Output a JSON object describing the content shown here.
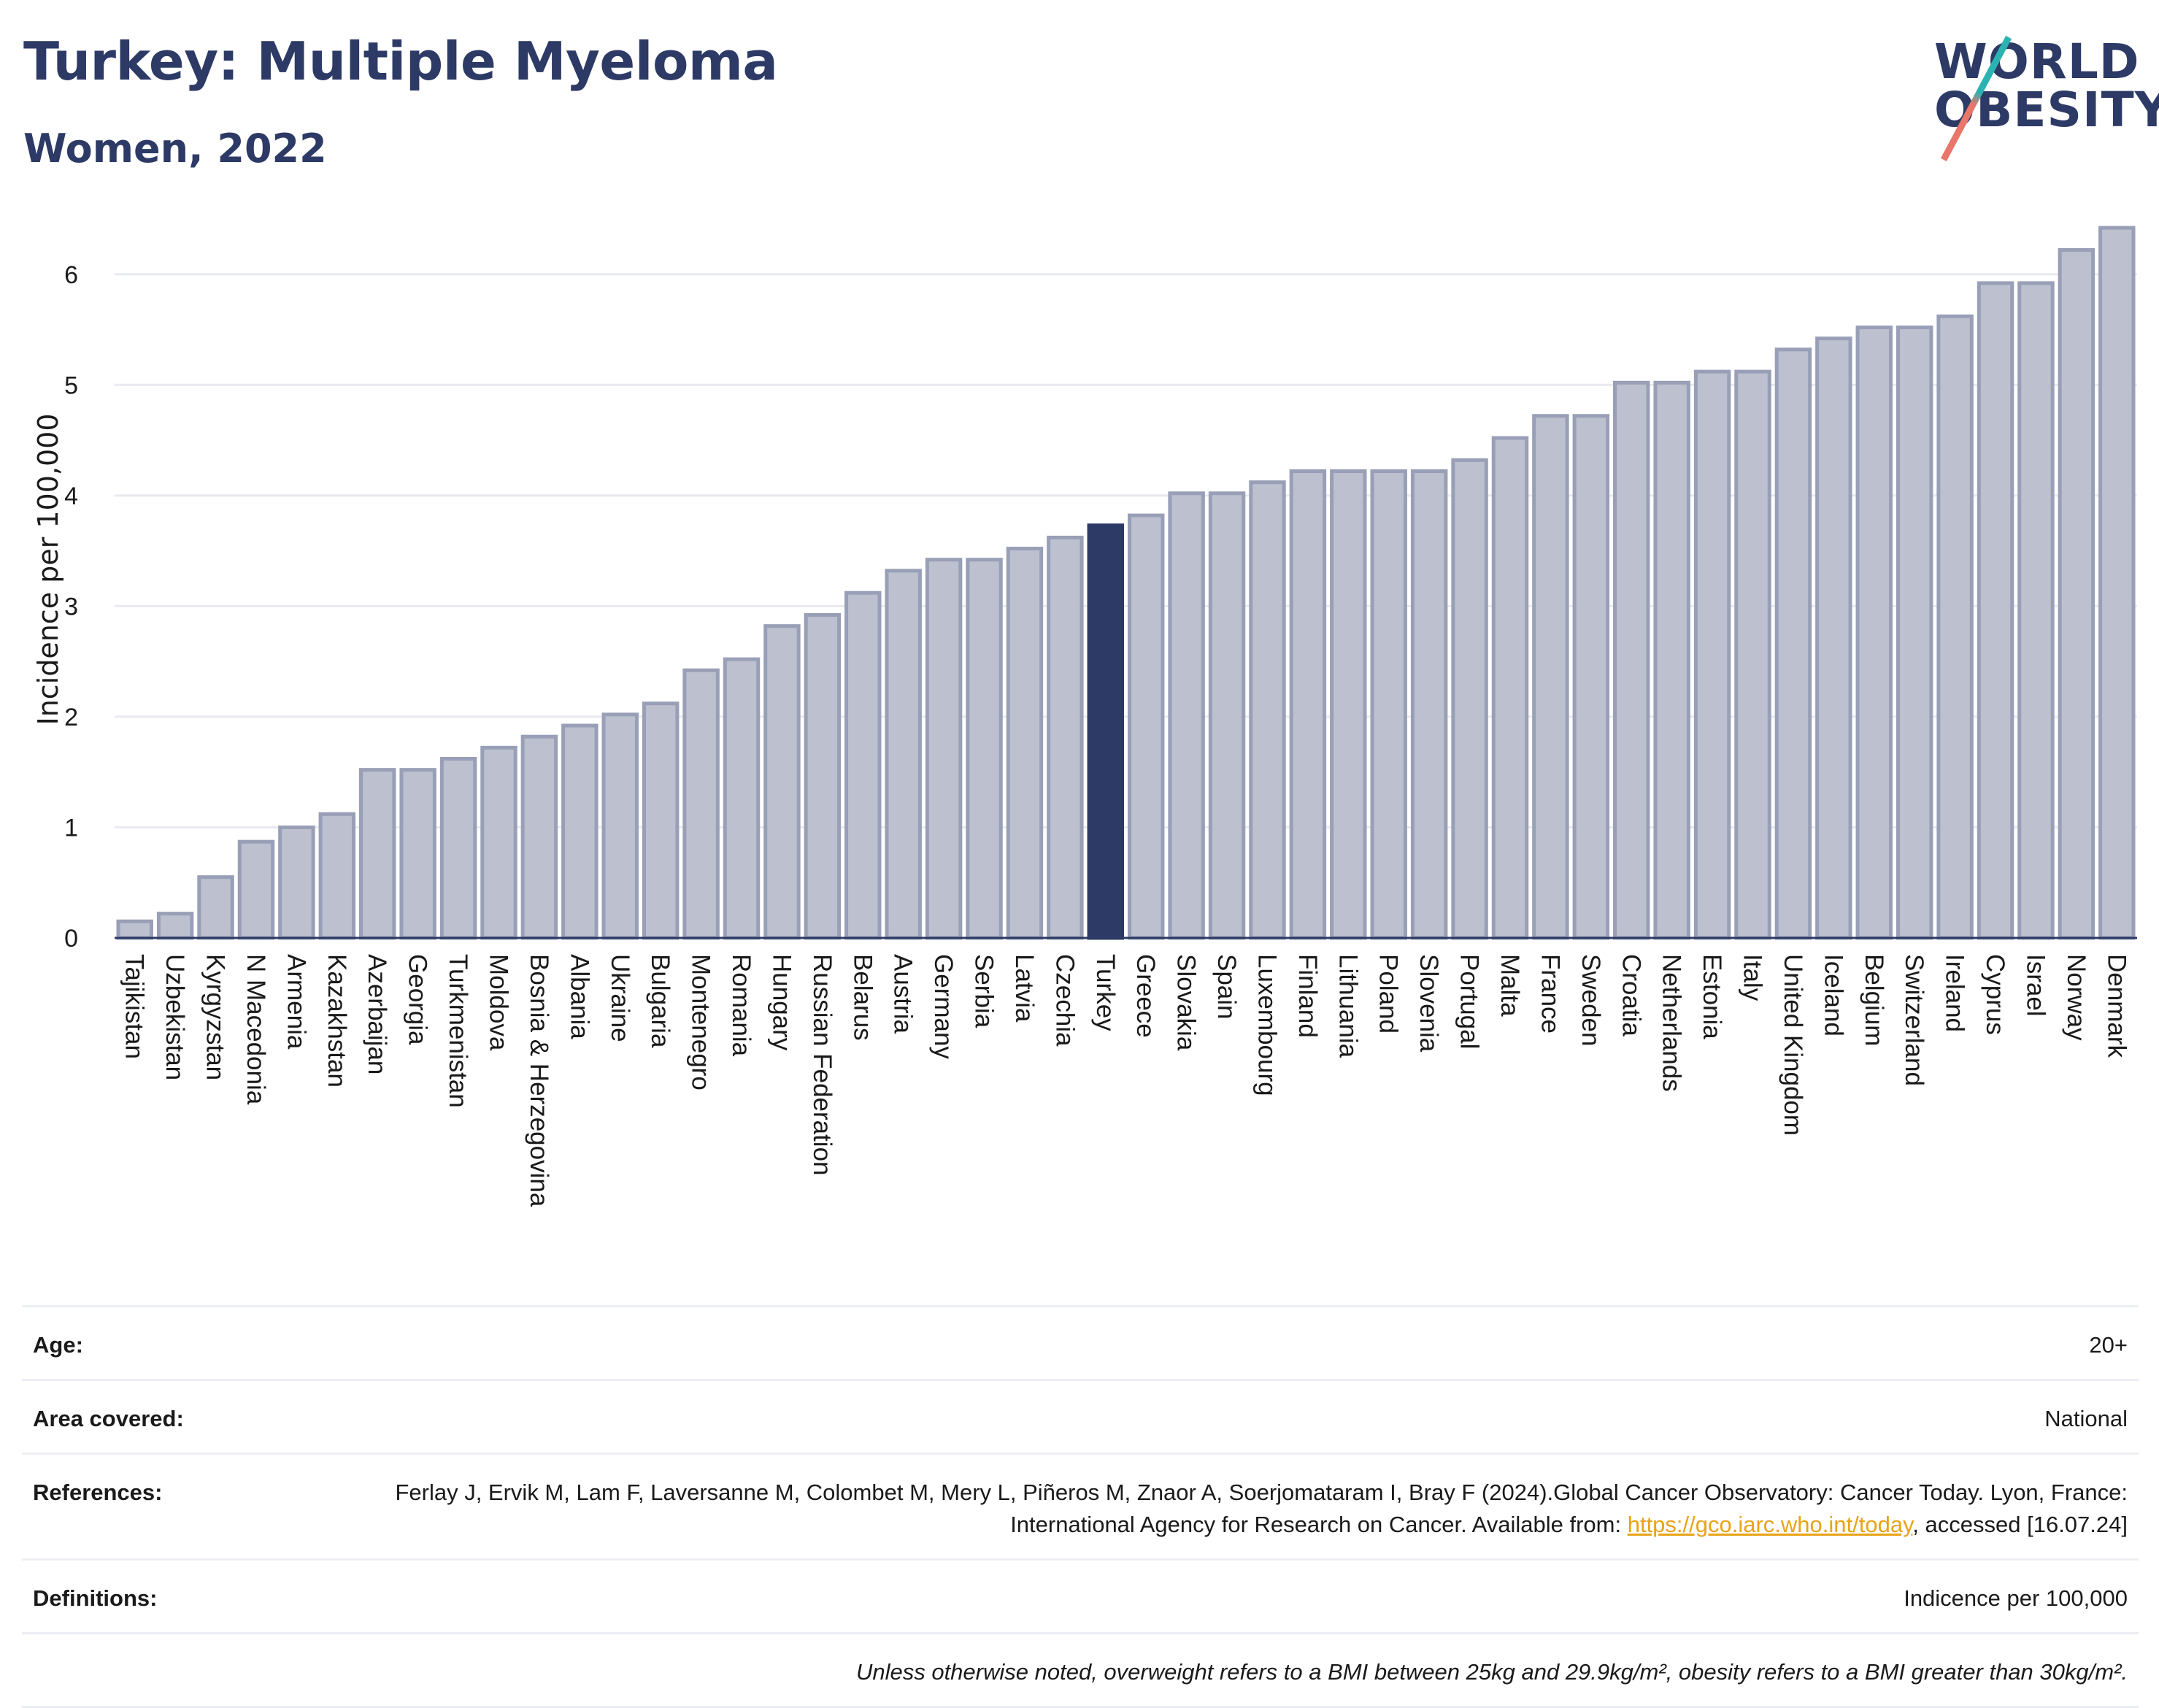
{
  "header": {
    "title": "Turkey: Multiple Myeloma",
    "subtitle": "Women, 2022",
    "logo_line1": "WORLD",
    "logo_line2": "OBESITY"
  },
  "colors": {
    "title": "#2d3a66",
    "highlight_bar": "#2d3a66",
    "other_bar_fill": "#bcc0cf",
    "other_bar_stroke": "#989fb6",
    "link": "#e8a317",
    "logo_teal": "#2bb3b1",
    "logo_coral": "#e8766a"
  },
  "chart_data": {
    "type": "bar",
    "ylabel": "Incidence per 100,000",
    "ylim": [
      0,
      6.5
    ],
    "yticks": [
      0,
      1,
      2,
      3,
      4,
      5,
      6
    ],
    "grid": true,
    "highlight": "Turkey",
    "categories": [
      "Tajikistan",
      "Uzbekistan",
      "Kyrgyzstan",
      "N Macedonia",
      "Armenia",
      "Kazakhstan",
      "Azerbaijan",
      "Georgia",
      "Turkmenistan",
      "Moldova",
      "Bosnia & Herzegovina",
      "Albania",
      "Ukraine",
      "Bulgaria",
      "Montenegro",
      "Romania",
      "Hungary",
      "Russian Federation",
      "Belarus",
      "Austria",
      "Germany",
      "Serbia",
      "Latvia",
      "Czechia",
      "Turkey",
      "Greece",
      "Slovakia",
      "Spain",
      "Luxembourg",
      "Finland",
      "Lithuania",
      "Poland",
      "Slovenia",
      "Portugal",
      "Malta",
      "France",
      "Sweden",
      "Croatia",
      "Netherlands",
      "Estonia",
      "Italy",
      "United Kingdom",
      "Iceland",
      "Belgium",
      "Switzerland",
      "Ireland",
      "Cyprus",
      "Israel",
      "Norway",
      "Denmark"
    ],
    "values": [
      0.15,
      0.22,
      0.55,
      0.87,
      1.0,
      1.12,
      1.52,
      1.52,
      1.62,
      1.72,
      1.82,
      1.92,
      2.02,
      2.12,
      2.42,
      2.52,
      2.82,
      2.92,
      3.12,
      3.32,
      3.42,
      3.42,
      3.52,
      3.62,
      3.73,
      3.82,
      4.02,
      4.02,
      4.12,
      4.22,
      4.22,
      4.22,
      4.22,
      4.32,
      4.52,
      4.72,
      4.72,
      5.02,
      5.02,
      5.12,
      5.12,
      5.32,
      5.42,
      5.52,
      5.52,
      5.62,
      5.92,
      5.92,
      6.22,
      6.42
    ]
  },
  "meta": {
    "age_label": "Age:",
    "age_value": "20+",
    "area_label": "Area covered:",
    "area_value": "National",
    "references_label": "References:",
    "references_text": "Ferlay J, Ervik M, Lam F, Laversanne M, Colombet M, Mery L, Piñeros M, Znaor A, Soerjomataram I, Bray F (2024).Global Cancer Observatory: Cancer Today. Lyon, France: International Agency for Research on Cancer. Available from: ",
    "references_link": "https://gco.iarc.who.int/today",
    "references_suffix": ", accessed [16.07.24]",
    "definitions_label": "Definitions:",
    "definitions_value": "Indicence per 100,000",
    "note": "Unless otherwise noted, overweight refers to a BMI between 25kg and 29.9kg/m², obesity refers to a BMI greater than 30kg/m²."
  }
}
